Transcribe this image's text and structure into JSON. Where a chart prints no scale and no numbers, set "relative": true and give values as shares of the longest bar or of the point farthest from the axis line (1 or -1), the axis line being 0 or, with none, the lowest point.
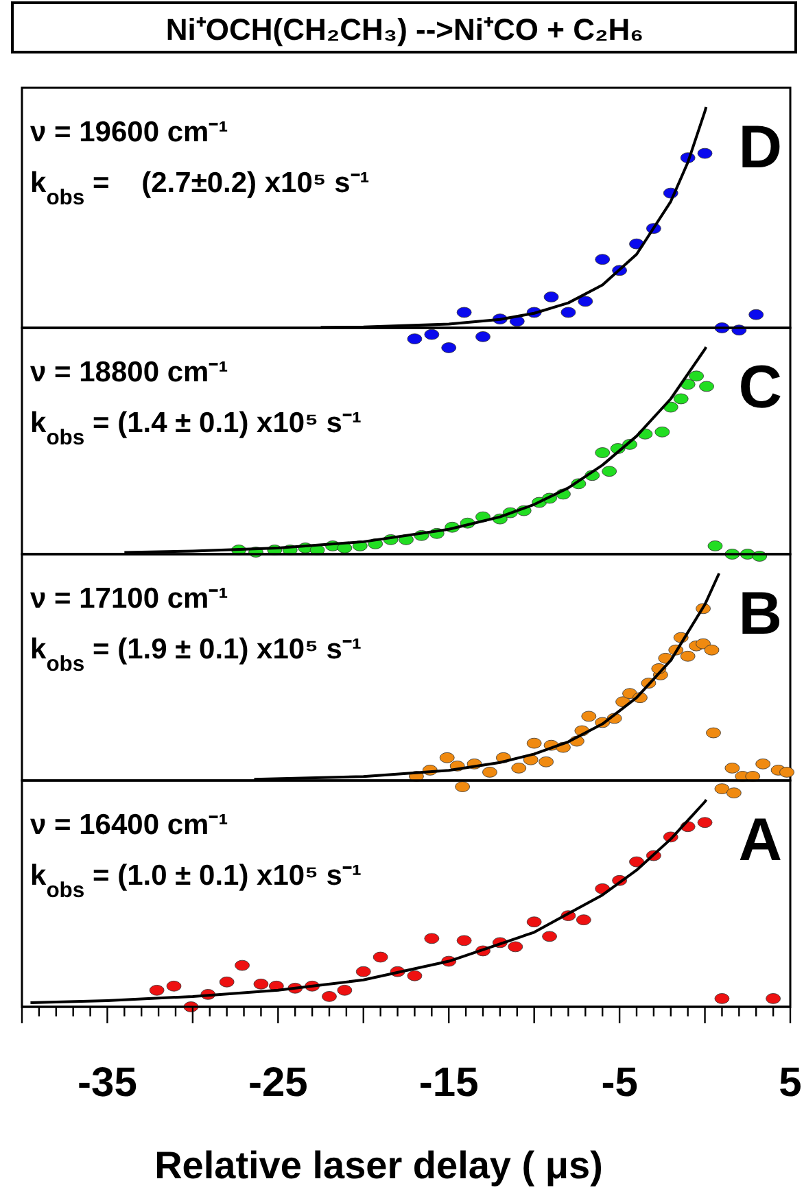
{
  "chart_data": [
    {
      "type": "scatter",
      "title": "Ni⁺OCH(CH₂CH₃) -->Ni⁺CO + C₂H₆",
      "relative": true,
      "xlim": [
        -40,
        5
      ],
      "tick_labels": false,
      "annotations": [
        "ν = 19600 cm⁻¹",
        "k$_{obs}$ =    (2.7±0.2) x10⁵ s⁻¹",
        "D"
      ],
      "series": [
        {
          "marker": "circle",
          "color": "#0a0aee",
          "x": [
            -17.0,
            -16.0,
            -15.0,
            -14.1,
            -13.0,
            -12.0,
            -11.0,
            -10.0,
            -9.0,
            -8.0,
            -7.0,
            -6.0,
            -5.0,
            -4.0,
            -3.0,
            -2.0,
            -1.0,
            0.0,
            1.0,
            2.0,
            3.0
          ],
          "values": [
            -0.05,
            -0.03,
            -0.09,
            0.07,
            -0.04,
            0.04,
            0.03,
            0.07,
            0.14,
            0.07,
            0.12,
            0.31,
            0.26,
            0.38,
            0.45,
            0.61,
            0.77,
            0.79,
            0.0,
            -0.01,
            0.06
          ]
        },
        {
          "type": "line",
          "color": "#000000",
          "x": [
            -22.5,
            -20,
            -15,
            -12,
            -10,
            -8,
            -6,
            -4,
            -2,
            -1,
            0,
            0.07
          ],
          "values": [
            0.002,
            0.004,
            0.017,
            0.038,
            0.066,
            0.113,
            0.194,
            0.333,
            0.572,
            0.749,
            0.98,
            1
          ]
        }
      ]
    },
    {
      "type": "scatter",
      "relative": true,
      "xlim": [
        -40,
        5
      ],
      "tick_labels": false,
      "annotations": [
        "ν = 18800 cm⁻¹",
        "k$_{obs}$ = (1.4 ± 0.1) x10⁵ s⁻¹",
        "C"
      ],
      "series": [
        {
          "marker": "circle",
          "color": "#22dd22",
          "x": [
            -27.3,
            -26.3,
            -25.2,
            -24.3,
            -23.4,
            -22.7,
            -21.8,
            -21.1,
            -20.2,
            -19.3,
            -18.4,
            -17.5,
            -16.6,
            -15.7,
            -14.8,
            -13.9,
            -13.0,
            -12.0,
            -11.4,
            -10.6,
            -9.7,
            -9.1,
            -8.3,
            -7.4,
            -6.6,
            -6.0,
            -5.6,
            -5.1,
            -4.4,
            -3.5,
            -2.5,
            -2.0,
            -1.4,
            -1.0,
            -0.5,
            0.1,
            0.6,
            1.6,
            2.5,
            3.2
          ],
          "values": [
            0.02,
            0.01,
            0.02,
            0.02,
            0.03,
            0.02,
            0.04,
            0.03,
            0.04,
            0.05,
            0.07,
            0.07,
            0.09,
            0.1,
            0.13,
            0.15,
            0.18,
            0.17,
            0.2,
            0.21,
            0.25,
            0.27,
            0.29,
            0.34,
            0.38,
            0.49,
            0.4,
            0.51,
            0.53,
            0.58,
            0.59,
            0.71,
            0.75,
            0.82,
            0.86,
            0.81,
            0.04,
            0.0,
            0.0,
            -0.01
          ]
        },
        {
          "type": "line",
          "color": "#000000",
          "x": [
            -34,
            -30,
            -25,
            -20,
            -15,
            -12,
            -10,
            -8,
            -6,
            -4,
            -2,
            0,
            0.07
          ],
          "values": [
            0.008,
            0.015,
            0.03,
            0.06,
            0.12,
            0.18,
            0.24,
            0.32,
            0.43,
            0.57,
            0.75,
            0.99,
            1
          ]
        }
      ]
    },
    {
      "type": "scatter",
      "relative": true,
      "xlim": [
        -40,
        5
      ],
      "tick_labels": false,
      "annotations": [
        "ν = 17100 cm⁻¹",
        "k$_{obs}$ = (1.9 ± 0.1) x10⁵ s⁻¹",
        "B"
      ],
      "series": [
        {
          "marker": "circle",
          "color": "#f08a10",
          "x": [
            -16.9,
            -16.1,
            -15.1,
            -14.5,
            -13.5,
            -12.6,
            -11.8,
            -10.9,
            -10.2,
            -9.3,
            -10.0,
            -9.0,
            -8.3,
            -7.5,
            -7.2,
            -6.8,
            -6.0,
            -5.3,
            -4.8,
            -4.4,
            -3.8,
            -3.3,
            -2.6,
            -2.7,
            -2.3,
            -1.7,
            -1.4,
            -1.0,
            -0.5,
            -0.1,
            0.4,
            -0.1,
            0.5,
            1.6,
            2.2,
            2.8,
            3.4,
            4.3,
            4.8,
            -14.2,
            1.0,
            1.7
          ],
          "values": [
            0.02,
            0.05,
            0.11,
            0.07,
            0.08,
            0.04,
            0.11,
            0.06,
            0.1,
            0.09,
            0.18,
            0.17,
            0.16,
            0.19,
            0.24,
            0.31,
            0.28,
            0.3,
            0.38,
            0.42,
            0.4,
            0.47,
            0.51,
            0.54,
            0.59,
            0.63,
            0.69,
            0.6,
            0.65,
            0.66,
            0.63,
            0.83,
            0.23,
            0.06,
            0.02,
            0.02,
            0.08,
            0.05,
            0.04,
            -0.03,
            -0.04,
            -0.06
          ]
        },
        {
          "type": "line",
          "color": "#000000",
          "x": [
            -26.4,
            -20,
            -15,
            -12,
            -10,
            -8,
            -6,
            -4,
            -2,
            0,
            0.83
          ],
          "values": [
            0.006,
            0.019,
            0.049,
            0.087,
            0.128,
            0.187,
            0.273,
            0.4,
            0.58,
            0.85,
            1
          ]
        }
      ]
    },
    {
      "type": "scatter",
      "xlabel": "Relative laser delay ( μs)",
      "relative": true,
      "xlim": [
        -40,
        5
      ],
      "xticks": [
        {
          "value": -40,
          "label": null
        },
        {
          "value": -39,
          "label": null
        },
        {
          "value": -38,
          "label": null
        },
        {
          "value": -37,
          "label": null
        },
        {
          "value": -36,
          "label": null
        },
        -35,
        {
          "value": -34,
          "label": null
        },
        {
          "value": -33,
          "label": null
        },
        {
          "value": -32,
          "label": null
        },
        {
          "value": -31,
          "label": null
        },
        {
          "value": -30,
          "label": null
        },
        {
          "value": -29,
          "label": null
        },
        {
          "value": -28,
          "label": null
        },
        {
          "value": -27,
          "label": null
        },
        {
          "value": -26,
          "label": null
        },
        -25,
        {
          "value": -24,
          "label": null
        },
        {
          "value": -23,
          "label": null
        },
        {
          "value": -22,
          "label": null
        },
        {
          "value": -21,
          "label": null
        },
        {
          "value": -20,
          "label": null
        },
        {
          "value": -19,
          "label": null
        },
        {
          "value": -18,
          "label": null
        },
        {
          "value": -17,
          "label": null
        },
        {
          "value": -16,
          "label": null
        },
        -15,
        {
          "value": -14,
          "label": null
        },
        {
          "value": -13,
          "label": null
        },
        {
          "value": -12,
          "label": null
        },
        {
          "value": -11,
          "label": null
        },
        {
          "value": -10,
          "label": null
        },
        {
          "value": -9,
          "label": null
        },
        {
          "value": -8,
          "label": null
        },
        {
          "value": -7,
          "label": null
        },
        {
          "value": -6,
          "label": null
        },
        -5,
        {
          "value": -4,
          "label": null
        },
        {
          "value": -3,
          "label": null
        },
        {
          "value": -2,
          "label": null
        },
        {
          "value": -1,
          "label": null
        },
        {
          "value": 0,
          "label": null
        },
        {
          "value": 1,
          "label": null
        },
        {
          "value": 2,
          "label": null
        },
        {
          "value": 3,
          "label": null
        },
        {
          "value": 4,
          "label": null
        },
        5
      ],
      "annotations": [
        "ν = 16400 cm⁻¹",
        "k$_{obs}$ = (1.0 ± 0.1) x10⁵ s⁻¹",
        "A"
      ],
      "series": [
        {
          "marker": "circle",
          "color": "#ee1111",
          "x": [
            -32.1,
            -31.1,
            -30.1,
            -29.1,
            -28.0,
            -27.1,
            -26.0,
            -25.1,
            -24.0,
            -23.0,
            -22.0,
            -21.1,
            -20.0,
            -19.0,
            -18.0,
            -17.0,
            -16.0,
            -15.0,
            -14.1,
            -13.0,
            -12.0,
            -11.1,
            -10.0,
            -9.1,
            -8.0,
            -7.1,
            -6.0,
            -5.0,
            -4.0,
            -3.0,
            -2.0,
            -1.0,
            0.0,
            1.0,
            4.0
          ],
          "values": [
            0.08,
            0.1,
            0.0,
            0.06,
            0.12,
            0.2,
            0.11,
            0.1,
            0.09,
            0.1,
            0.05,
            0.08,
            0.17,
            0.24,
            0.17,
            0.15,
            0.33,
            0.22,
            0.32,
            0.27,
            0.31,
            0.29,
            0.41,
            0.34,
            0.44,
            0.42,
            0.57,
            0.61,
            0.7,
            0.73,
            0.82,
            0.87,
            0.89,
            0.04,
            0.04
          ]
        },
        {
          "type": "line",
          "color": "#000000",
          "x": [
            -39.5,
            -35,
            -30,
            -25,
            -20,
            -15,
            -10,
            -8,
            -6,
            -4,
            -2,
            0,
            0.08
          ],
          "values": [
            0.02,
            0.03,
            0.05,
            0.08,
            0.13,
            0.22,
            0.36,
            0.45,
            0.54,
            0.66,
            0.81,
            0.99,
            1
          ]
        }
      ]
    }
  ]
}
